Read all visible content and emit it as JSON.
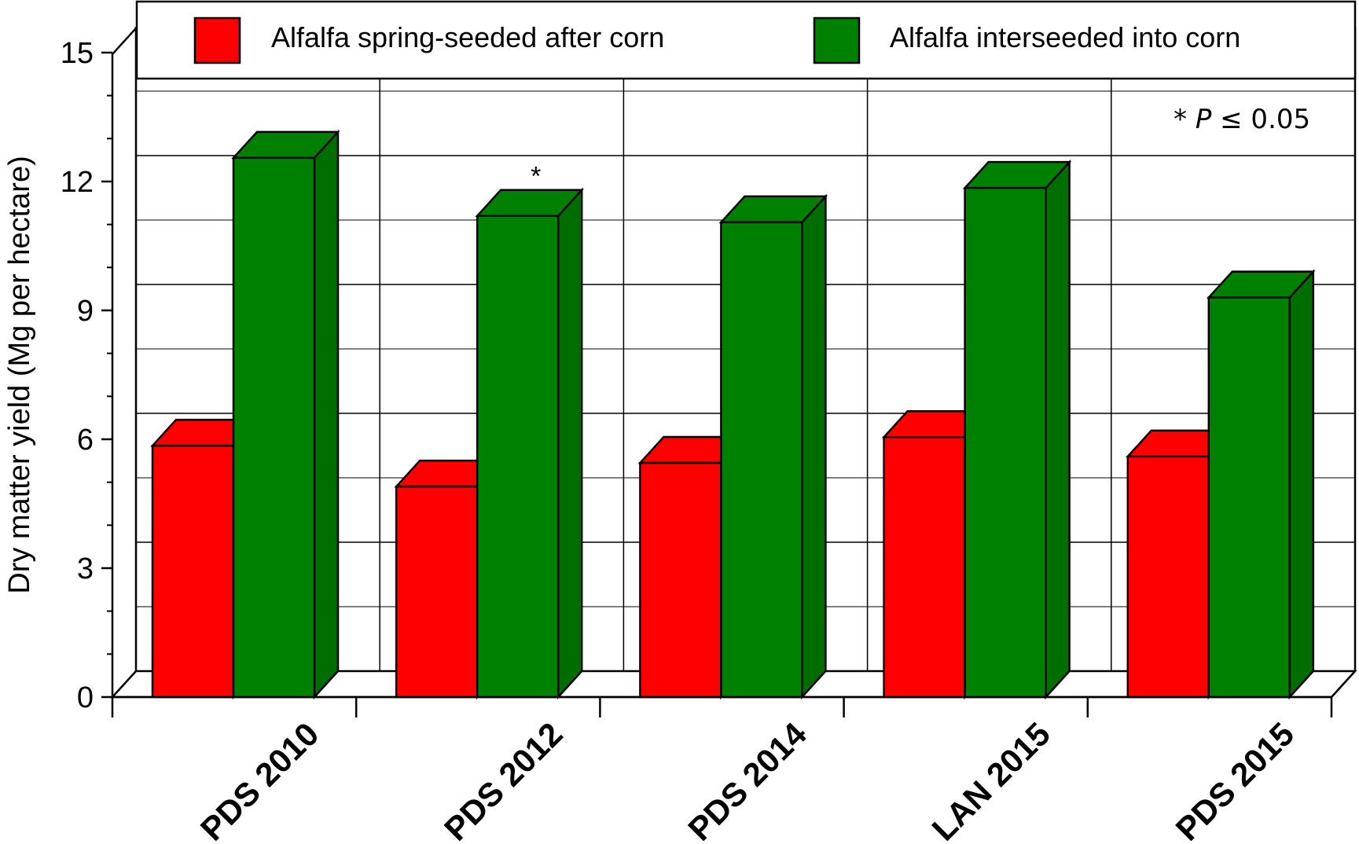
{
  "chart_data": {
    "type": "bar",
    "style": "3d-clustered",
    "categories": [
      "PDS 2010",
      "PDS 2012",
      "PDS 2014",
      "LAN 2015",
      "PDS 2015"
    ],
    "series": [
      {
        "name": "Alfalfa spring-seeded after corn",
        "color": "#ff0000",
        "values": [
          5.85,
          4.9,
          5.45,
          6.05,
          5.6
        ]
      },
      {
        "name": "Alfalfa interseeded into corn",
        "color": "#008000",
        "values": [
          12.55,
          11.2,
          11.05,
          11.85,
          9.3
        ]
      }
    ],
    "significance": [
      "",
      "*",
      "",
      "",
      ""
    ],
    "ylabel": "Dry matter yield (Mg per hectare)",
    "xlabel": "",
    "ylim": [
      0,
      15
    ],
    "yticks": [
      0,
      3,
      6,
      9,
      12,
      15
    ],
    "grid": true,
    "legend_position": "top",
    "annotation": {
      "star": "*",
      "p": "P",
      "rest": "≤ 0.05"
    }
  }
}
